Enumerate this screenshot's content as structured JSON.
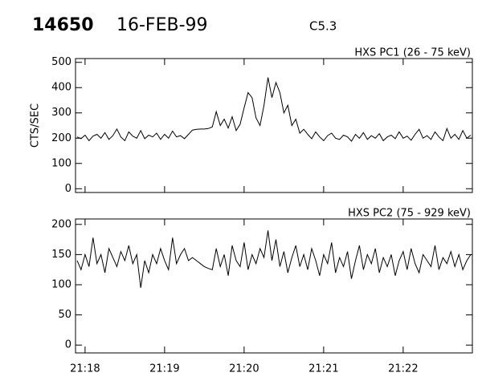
{
  "header": {
    "id": "14650",
    "date": "16-FEB-99",
    "class": "C5.3"
  },
  "chart_data": [
    {
      "type": "line",
      "title": "HXS PC1 (26 - 75 keV)",
      "ylabel": "CTS/SEC",
      "color": "#000000",
      "xlim": [
        17.88,
        22.87
      ],
      "ylim": [
        -15,
        515
      ],
      "yticks": [
        0,
        100,
        200,
        300,
        400,
        500
      ],
      "x": [
        17.9,
        17.95,
        18.0,
        18.05,
        18.1,
        18.15,
        18.2,
        18.25,
        18.3,
        18.35,
        18.4,
        18.45,
        18.5,
        18.55,
        18.6,
        18.65,
        18.7,
        18.75,
        18.8,
        18.85,
        18.9,
        18.95,
        19.0,
        19.05,
        19.1,
        19.15,
        19.2,
        19.25,
        19.3,
        19.35,
        19.4,
        19.45,
        19.5,
        19.55,
        19.6,
        19.65,
        19.7,
        19.75,
        19.8,
        19.85,
        19.9,
        19.95,
        20.0,
        20.05,
        20.1,
        20.15,
        20.2,
        20.25,
        20.3,
        20.35,
        20.4,
        20.45,
        20.5,
        20.55,
        20.6,
        20.65,
        20.7,
        20.75,
        20.8,
        20.85,
        20.9,
        20.95,
        21.0,
        21.05,
        21.1,
        21.15,
        21.2,
        21.25,
        21.3,
        21.35,
        21.4,
        21.45,
        21.5,
        21.55,
        21.6,
        21.65,
        21.7,
        21.75,
        21.8,
        21.85,
        21.9,
        21.95,
        22.0,
        22.05,
        22.1,
        22.15,
        22.2,
        22.25,
        22.3,
        22.35,
        22.4,
        22.45,
        22.5,
        22.55,
        22.6,
        22.65,
        22.7,
        22.75,
        22.8,
        22.85
      ],
      "values": [
        205,
        198,
        212,
        190,
        208,
        215,
        200,
        222,
        195,
        210,
        236,
        205,
        190,
        225,
        208,
        200,
        230,
        198,
        212,
        205,
        220,
        195,
        215,
        200,
        228,
        205,
        210,
        198,
        215,
        232,
        235,
        236,
        236,
        238,
        245,
        305,
        250,
        275,
        240,
        285,
        230,
        255,
        320,
        380,
        360,
        280,
        250,
        330,
        440,
        360,
        420,
        380,
        300,
        330,
        250,
        275,
        220,
        235,
        215,
        198,
        225,
        205,
        190,
        210,
        220,
        200,
        195,
        212,
        205,
        188,
        215,
        200,
        222,
        195,
        210,
        200,
        218,
        190,
        205,
        212,
        198,
        225,
        200,
        208,
        192,
        215,
        235,
        200,
        210,
        195,
        225,
        205,
        190,
        238,
        200,
        215,
        195,
        230,
        200,
        212
      ]
    },
    {
      "type": "line",
      "title": "HXS PC2 (75 - 929 keV)",
      "color": "#000000",
      "xlim": [
        17.88,
        22.87
      ],
      "ylim": [
        -13,
        209
      ],
      "yticks": [
        0,
        50,
        100,
        150,
        200
      ],
      "xticks": [
        {
          "value": 18,
          "label": "21:18"
        },
        {
          "value": 19,
          "label": "21:19"
        },
        {
          "value": 20,
          "label": "21:20"
        },
        {
          "value": 21,
          "label": "21:21"
        },
        {
          "value": 22,
          "label": "21:22"
        }
      ],
      "x": [
        17.9,
        17.95,
        18.0,
        18.05,
        18.1,
        18.15,
        18.2,
        18.25,
        18.3,
        18.35,
        18.4,
        18.45,
        18.5,
        18.55,
        18.6,
        18.65,
        18.7,
        18.75,
        18.8,
        18.85,
        18.9,
        18.95,
        19.0,
        19.05,
        19.1,
        19.15,
        19.2,
        19.25,
        19.3,
        19.35,
        19.4,
        19.45,
        19.5,
        19.55,
        19.6,
        19.65,
        19.7,
        19.75,
        19.8,
        19.85,
        19.9,
        19.95,
        20.0,
        20.05,
        20.1,
        20.15,
        20.2,
        20.25,
        20.3,
        20.35,
        20.4,
        20.45,
        20.5,
        20.55,
        20.6,
        20.65,
        20.7,
        20.75,
        20.8,
        20.85,
        20.9,
        20.95,
        21.0,
        21.05,
        21.1,
        21.15,
        21.2,
        21.25,
        21.3,
        21.35,
        21.4,
        21.45,
        21.5,
        21.55,
        21.6,
        21.65,
        21.7,
        21.75,
        21.8,
        21.85,
        21.9,
        21.95,
        22.0,
        22.05,
        22.1,
        22.15,
        22.2,
        22.25,
        22.3,
        22.35,
        22.4,
        22.45,
        22.5,
        22.55,
        22.6,
        22.65,
        22.7,
        22.75,
        22.8,
        22.85
      ],
      "values": [
        140,
        125,
        150,
        130,
        178,
        135,
        150,
        120,
        160,
        145,
        130,
        155,
        140,
        165,
        135,
        150,
        95,
        140,
        120,
        150,
        135,
        160,
        140,
        125,
        178,
        135,
        150,
        160,
        140,
        145,
        140,
        135,
        130,
        127,
        125,
        160,
        130,
        150,
        115,
        165,
        140,
        130,
        170,
        125,
        150,
        135,
        160,
        145,
        190,
        140,
        175,
        130,
        155,
        120,
        145,
        165,
        130,
        150,
        125,
        160,
        140,
        115,
        150,
        135,
        170,
        120,
        145,
        130,
        155,
        110,
        140,
        165,
        125,
        150,
        135,
        160,
        120,
        145,
        130,
        150,
        115,
        140,
        155,
        125,
        160,
        135,
        120,
        150,
        140,
        130,
        165,
        125,
        145,
        135,
        155,
        130,
        150,
        125,
        140,
        150
      ]
    }
  ]
}
